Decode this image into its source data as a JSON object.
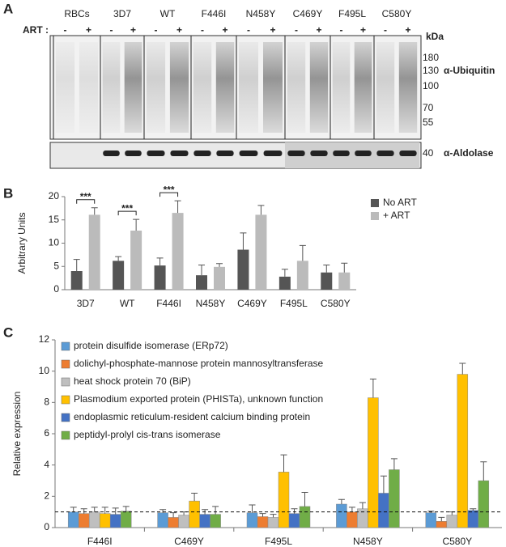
{
  "blot": {
    "panel": "A",
    "art_label": "ART :",
    "signs": [
      "-",
      "+"
    ],
    "lanes": [
      "RBCs",
      "3D7",
      "WT",
      "F446I",
      "N458Y",
      "C469Y",
      "F495L",
      "C580Y"
    ],
    "unit": "kDa",
    "markers": [
      "180",
      "130",
      "100",
      "70",
      "55"
    ],
    "loading_marker": "40",
    "top_antibody": "α-Ubiquitin",
    "bottom_antibody": "α-Aldolase"
  },
  "chart_data": [
    {
      "type": "bar",
      "panel": "B",
      "ylabel": "Arbitrary Units",
      "categories": [
        "3D7",
        "WT",
        "F446I",
        "N458Y",
        "C469Y",
        "F495L",
        "C580Y"
      ],
      "series": [
        {
          "name": "No ART",
          "color": "#555555",
          "values": [
            4.0,
            6.2,
            5.2,
            3.1,
            8.6,
            2.8,
            3.7
          ],
          "errors": [
            2.5,
            0.9,
            1.6,
            2.2,
            3.6,
            1.6,
            1.6
          ]
        },
        {
          "name": "+ ART",
          "color": "#bbbbbb",
          "values": [
            16.1,
            12.7,
            16.5,
            4.9,
            16.1,
            6.2,
            3.7
          ],
          "errors": [
            1.5,
            2.4,
            2.6,
            0.7,
            2.0,
            3.3,
            2.0
          ]
        }
      ],
      "annotations": [
        {
          "label": "***",
          "category": "3D7"
        },
        {
          "label": "***",
          "category": "WT"
        },
        {
          "label": "***",
          "category": "F446I"
        }
      ],
      "ylim": [
        0,
        20
      ],
      "yticks": [
        0,
        5,
        10,
        15,
        20
      ],
      "grid": false,
      "legend": "upper right"
    },
    {
      "type": "bar",
      "panel": "C",
      "ylabel": "Relative expression",
      "categories": [
        "F446I",
        "C469Y",
        "F495L",
        "N458Y",
        "C580Y"
      ],
      "series": [
        {
          "name": "protein disulfide isomerase (ERp72)",
          "color": "#5b9bd5",
          "values": [
            1.0,
            0.95,
            0.95,
            1.5,
            0.95
          ],
          "errors": [
            0.3,
            0.2,
            0.5,
            0.3,
            0.1
          ]
        },
        {
          "name": "dolichyl-phosphate-mannose protein mannosyltransferase",
          "color": "#ed7d31",
          "values": [
            0.9,
            0.65,
            0.7,
            1.0,
            0.4
          ],
          "errors": [
            0.3,
            0.3,
            0.2,
            0.3,
            0.25
          ]
        },
        {
          "name": "heat shock protein 70 (BiP)",
          "color": "#bfbfbf",
          "values": [
            1.0,
            0.8,
            0.65,
            1.2,
            0.8
          ],
          "errors": [
            0.3,
            0.2,
            0.2,
            0.4,
            0.2
          ]
        },
        {
          "name": "Plasmodium exported protein (PHISTa), unknown function",
          "color": "#ffc000",
          "values": [
            0.9,
            1.7,
            3.55,
            8.3,
            9.8
          ],
          "errors": [
            0.4,
            0.5,
            1.1,
            1.2,
            0.7
          ]
        },
        {
          "name": "endoplasmic reticulum-resident calcium binding protein",
          "color": "#4472c4",
          "values": [
            0.85,
            0.85,
            0.9,
            2.2,
            1.1
          ],
          "errors": [
            0.4,
            0.3,
            0.3,
            1.1,
            0.1
          ]
        },
        {
          "name": "peptidyl-prolyl cis-trans isomerase",
          "color": "#70ad47",
          "values": [
            1.05,
            0.85,
            1.35,
            3.7,
            3.0
          ],
          "errors": [
            0.3,
            0.5,
            0.9,
            0.7,
            1.2
          ]
        }
      ],
      "reference_line": 1,
      "ylim": [
        0,
        12
      ],
      "yticks": [
        0,
        2,
        4,
        6,
        8,
        10,
        12
      ],
      "grid": false,
      "legend": "upper left"
    }
  ]
}
